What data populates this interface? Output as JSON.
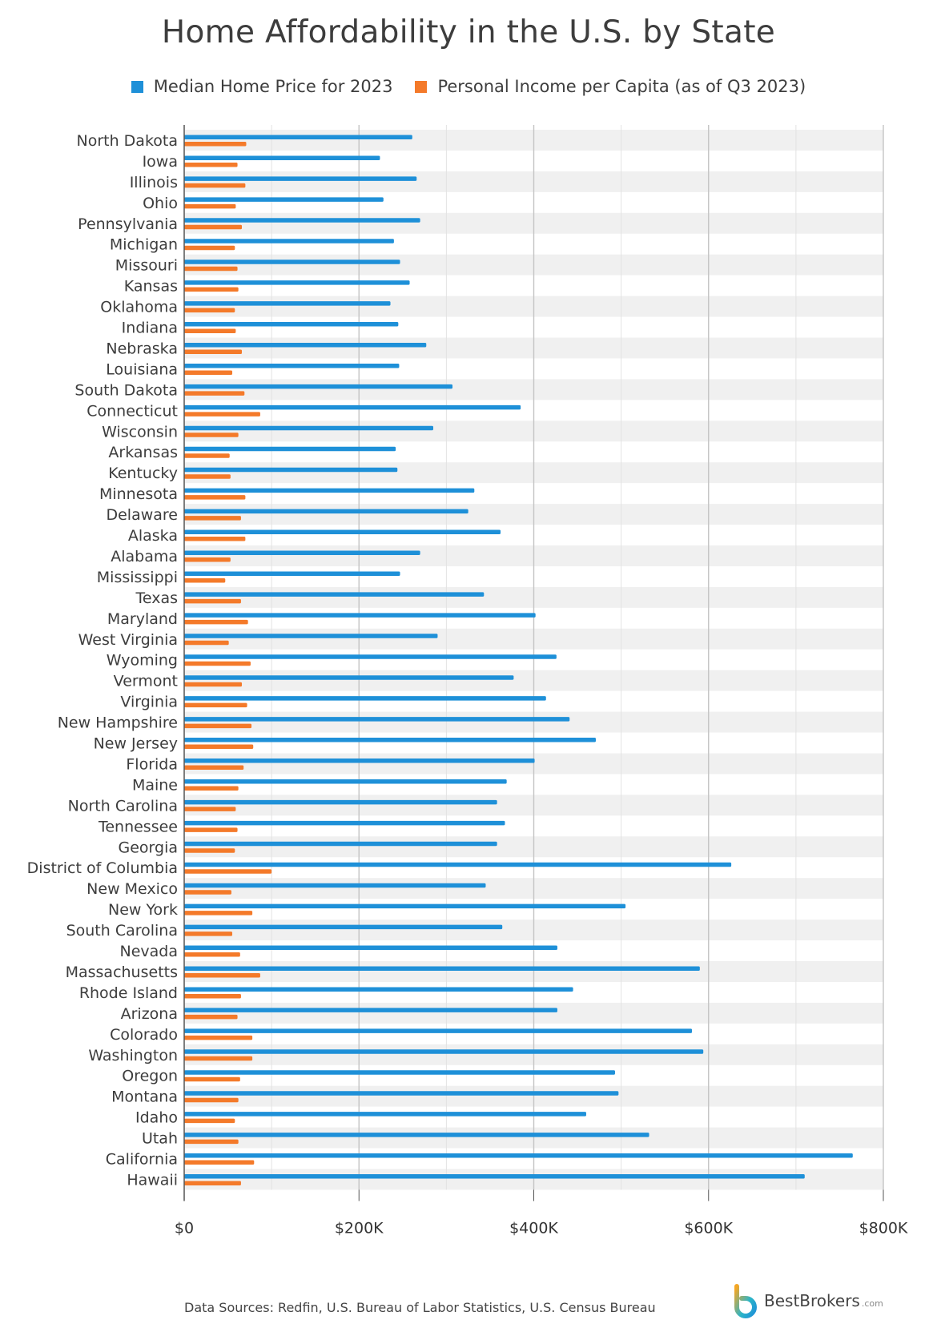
{
  "chart_data": {
    "type": "bar",
    "orientation": "horizontal",
    "title": "Home Affordability in the U.S. by State",
    "xlim": [
      0,
      800000
    ],
    "x_ticks": [
      {
        "value": 0,
        "label": "$0"
      },
      {
        "value": 200000,
        "label": "$200K"
      },
      {
        "value": 400000,
        "label": "$400K"
      },
      {
        "value": 600000,
        "label": "$600K"
      },
      {
        "value": 800000,
        "label": "$800K"
      }
    ],
    "grid": true,
    "legend_position": "top",
    "categories": [
      "North Dakota",
      "Iowa",
      "Illinois",
      "Ohio",
      "Pennsylvania",
      "Michigan",
      "Missouri",
      "Kansas",
      "Oklahoma",
      "Indiana",
      "Nebraska",
      "Louisiana",
      "South Dakota",
      "Connecticut",
      "Wisconsin",
      "Arkansas",
      "Kentucky",
      "Minnesota",
      "Delaware",
      "Alaska",
      "Alabama",
      "Mississippi",
      "Texas",
      "Maryland",
      "West Virginia",
      "Wyoming",
      "Vermont",
      "Virginia",
      "New Hampshire",
      "New Jersey",
      "Florida",
      "Maine",
      "North Carolina",
      "Tennessee",
      "Georgia",
      "District of Columbia",
      "New Mexico",
      "New York",
      "South Carolina",
      "Nevada",
      "Massachusetts",
      "Rhode Island",
      "Arizona",
      "Colorado",
      "Washington",
      "Oregon",
      "Montana",
      "Idaho",
      "Utah",
      "California",
      "Hawaii"
    ],
    "series": [
      {
        "name": "Median Home Price for 2023",
        "color": "#1e90d8",
        "values": [
          261000,
          224000,
          266000,
          228000,
          270000,
          240000,
          247000,
          258000,
          236000,
          245000,
          277000,
          246000,
          307000,
          385000,
          285000,
          242000,
          244000,
          332000,
          325000,
          362000,
          270000,
          247000,
          343000,
          402000,
          290000,
          426000,
          377000,
          414000,
          441000,
          471000,
          401000,
          369000,
          358000,
          367000,
          358000,
          626000,
          345000,
          505000,
          364000,
          427000,
          590000,
          445000,
          427000,
          581000,
          594000,
          493000,
          497000,
          460000,
          532000,
          765000,
          710000
        ]
      },
      {
        "name": "Personal Income per Capita (as of Q3 2023)",
        "color": "#f47a2a",
        "values": [
          71000,
          61000,
          70000,
          59000,
          66000,
          58000,
          61000,
          62000,
          58000,
          59000,
          66000,
          55000,
          69000,
          87000,
          62000,
          52000,
          53000,
          70000,
          65000,
          70000,
          53000,
          47000,
          65000,
          73000,
          51000,
          76000,
          66000,
          72000,
          77000,
          79000,
          68000,
          62000,
          59000,
          61000,
          58000,
          100000,
          54000,
          78000,
          55000,
          64000,
          87000,
          65000,
          61000,
          78000,
          78000,
          64000,
          62000,
          58000,
          62000,
          80000,
          65000
        ]
      }
    ]
  },
  "legend": {
    "items": [
      {
        "label": "Median Home Price for 2023",
        "color": "#1e90d8"
      },
      {
        "label": "Personal Income per Capita (as of Q3 2023)",
        "color": "#f47a2a"
      }
    ]
  },
  "footer": {
    "source": "Data Sources: Redfin, U.S. Bureau of Labor Statistics, U.S. Census Bureau",
    "brand_name": "BestBrokers",
    "brand_domain": ".com"
  }
}
